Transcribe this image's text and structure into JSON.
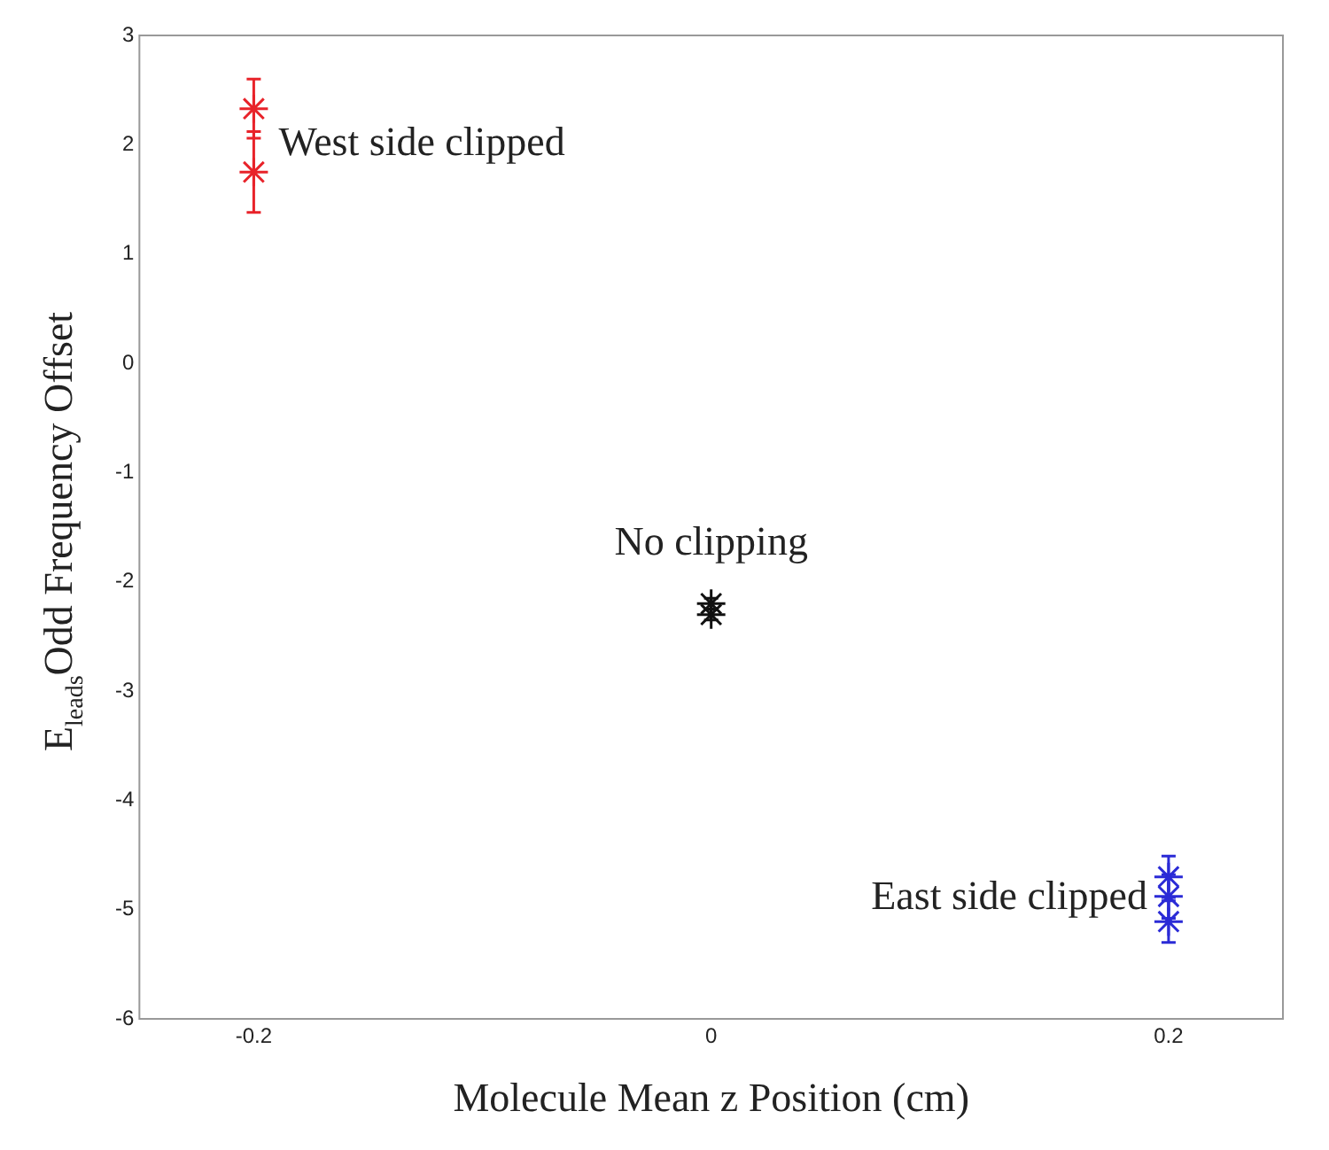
{
  "chart_data": {
    "type": "scatter",
    "xlabel": "Molecule Mean z Position (cm)",
    "ylabel": "E$_{leads}$Odd Frequency Offset",
    "xlim": [
      -0.25,
      0.25
    ],
    "xticks": [
      -0.2,
      0,
      0.2
    ],
    "ylim": [
      -6,
      3
    ],
    "yticks": [
      -6,
      -5,
      -4,
      -3,
      -2,
      -1,
      0,
      1,
      2,
      3
    ],
    "grid": false,
    "legend": false,
    "marker": "cross",
    "series": [
      {
        "color": "#e8232a",
        "x": [
          -0.2,
          -0.2
        ],
        "values": [
          2.33,
          1.75
        ],
        "errors": [
          0.27,
          0.37
        ]
      },
      {
        "color": "#111111",
        "x": [
          0,
          0
        ],
        "values": [
          -2.2,
          -2.3
        ],
        "errors": [
          0.05,
          0.05
        ]
      },
      {
        "color": "#2b2bd6",
        "x": [
          0.2,
          0.2,
          0.2
        ],
        "values": [
          -4.7,
          -4.88,
          -5.11
        ],
        "errors": [
          0.19,
          0.2,
          0.19
        ]
      }
    ],
    "annotations": [
      {
        "text": "West side clipped",
        "x": -0.2,
        "y": 2
      },
      {
        "text": "No clipping",
        "x": 0,
        "y": -2.2
      },
      {
        "text": "East side clipped",
        "x": 0.2,
        "y": -4.9
      }
    ]
  }
}
